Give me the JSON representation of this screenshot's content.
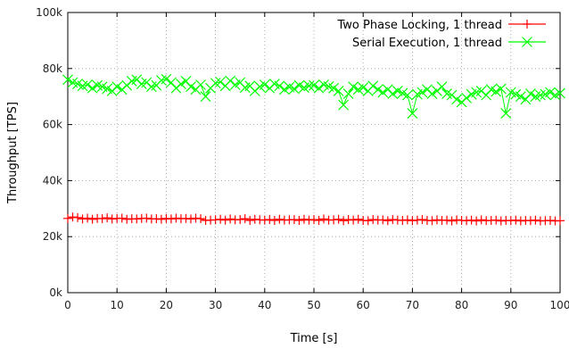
{
  "chart_data": {
    "type": "line",
    "xlabel": "Time [s]",
    "ylabel": "Throughput [TPS]",
    "xlim": [
      0,
      100
    ],
    "ylim": [
      0,
      100000
    ],
    "x_ticks": [
      0,
      10,
      20,
      30,
      40,
      50,
      60,
      70,
      80,
      90,
      100
    ],
    "x_tick_labels": [
      "0",
      "10",
      "20",
      "30",
      "40",
      "50",
      "60",
      "70",
      "80",
      "90",
      "100"
    ],
    "y_ticks": [
      0,
      20000,
      40000,
      60000,
      80000,
      100000
    ],
    "y_tick_labels": [
      "0k",
      "20k",
      "40k",
      "60k",
      "80k",
      "100k"
    ],
    "grid": true,
    "legend_position": "top-right",
    "series": [
      {
        "name": "Two Phase Locking, 1 thread",
        "color": "#ff0000",
        "marker": "plus",
        "x": [
          0,
          1,
          2,
          3,
          4,
          5,
          6,
          7,
          8,
          9,
          10,
          11,
          12,
          13,
          14,
          15,
          16,
          17,
          18,
          19,
          20,
          21,
          22,
          23,
          24,
          25,
          26,
          27,
          28,
          29,
          30,
          31,
          32,
          33,
          34,
          35,
          36,
          37,
          38,
          39,
          40,
          41,
          42,
          43,
          44,
          45,
          46,
          47,
          48,
          49,
          50,
          51,
          52,
          53,
          54,
          55,
          56,
          57,
          58,
          59,
          60,
          61,
          62,
          63,
          64,
          65,
          66,
          67,
          68,
          69,
          70,
          71,
          72,
          73,
          74,
          75,
          76,
          77,
          78,
          79,
          80,
          81,
          82,
          83,
          84,
          85,
          86,
          87,
          88,
          89,
          90,
          91,
          92,
          93,
          94,
          95,
          96,
          97,
          98,
          99,
          100
        ],
        "y": [
          26500,
          27000,
          26800,
          26300,
          26600,
          26200,
          26500,
          26400,
          26700,
          26300,
          26500,
          26600,
          26200,
          26400,
          26300,
          26500,
          26600,
          26300,
          26400,
          26200,
          26500,
          26300,
          26600,
          26400,
          26500,
          26300,
          26600,
          26400,
          25800,
          25900,
          26000,
          26200,
          25900,
          26300,
          26000,
          26100,
          26400,
          25800,
          26200,
          26000,
          25900,
          26100,
          25800,
          26200,
          25900,
          26000,
          26100,
          25800,
          26200,
          25900,
          26100,
          25800,
          26300,
          25900,
          26000,
          26200,
          25700,
          26100,
          25900,
          26200,
          25800,
          25700,
          26100,
          25900,
          26000,
          25700,
          26100,
          25900,
          25800,
          26000,
          25700,
          25900,
          26100,
          25800,
          25700,
          26000,
          25800,
          25900,
          25600,
          26000,
          25800,
          25700,
          25900,
          25600,
          26000,
          25700,
          25800,
          25900,
          25600,
          25800,
          25700,
          25900,
          25600,
          25800,
          25700,
          25900,
          25600,
          25700,
          25800,
          25600,
          25700
        ]
      },
      {
        "name": "Serial Execution, 1 thread",
        "color": "#00ff00",
        "marker": "cross",
        "x": [
          0,
          1,
          2,
          3,
          4,
          5,
          6,
          7,
          8,
          9,
          10,
          11,
          12,
          13,
          14,
          15,
          16,
          17,
          18,
          19,
          20,
          21,
          22,
          23,
          24,
          25,
          26,
          27,
          28,
          29,
          30,
          31,
          32,
          33,
          34,
          35,
          36,
          37,
          38,
          39,
          40,
          41,
          42,
          43,
          44,
          45,
          46,
          47,
          48,
          49,
          50,
          51,
          52,
          53,
          54,
          55,
          56,
          57,
          58,
          59,
          60,
          61,
          62,
          63,
          64,
          65,
          66,
          67,
          68,
          69,
          70,
          71,
          72,
          73,
          74,
          75,
          76,
          77,
          78,
          79,
          80,
          81,
          82,
          83,
          84,
          85,
          86,
          87,
          88,
          89,
          90,
          91,
          92,
          93,
          94,
          95,
          96,
          97,
          98,
          99,
          100
        ],
        "y": [
          76000,
          75000,
          74500,
          73800,
          74200,
          73000,
          74000,
          73500,
          72800,
          72000,
          73500,
          72500,
          74000,
          75500,
          76000,
          74500,
          75000,
          73500,
          74000,
          75800,
          76200,
          75000,
          73000,
          74500,
          75500,
          73500,
          72500,
          74200,
          70000,
          73000,
          74800,
          75200,
          73800,
          75600,
          74200,
          75000,
          73200,
          73800,
          72000,
          73500,
          74200,
          73000,
          74500,
          73800,
          72500,
          73400,
          72800,
          74000,
          73200,
          73800,
          74000,
          73000,
          74200,
          73600,
          73000,
          72000,
          67000,
          71000,
          73500,
          72500,
          73200,
          72000,
          73800,
          72500,
          71500,
          72500,
          71000,
          72000,
          71200,
          70500,
          64000,
          70800,
          71500,
          72500,
          71000,
          72000,
          73500,
          71000,
          70500,
          69000,
          68000,
          69500,
          70800,
          71500,
          72000,
          70500,
          72500,
          71800,
          72800,
          64000,
          71500,
          70800,
          70000,
          69000,
          71000,
          70000,
          70500,
          70800,
          71500,
          70500,
          71200
        ]
      }
    ]
  }
}
